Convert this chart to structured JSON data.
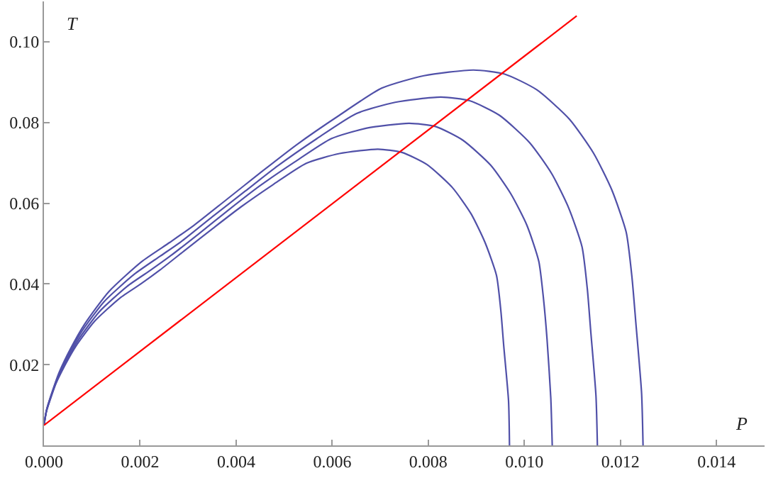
{
  "chart_data": {
    "type": "line",
    "xlabel": "P",
    "ylabel": "T",
    "xlim": [
      0,
      0.015
    ],
    "ylim": [
      0,
      0.11
    ],
    "xticks": [
      {
        "value": 0,
        "label": "0.000"
      },
      {
        "value": 0.002,
        "label": "0.002"
      },
      {
        "value": 0.004,
        "label": "0.004"
      },
      {
        "value": 0.006,
        "label": "0.006"
      },
      {
        "value": 0.008,
        "label": "0.008"
      },
      {
        "value": 0.01,
        "label": "0.010"
      },
      {
        "value": 0.012,
        "label": "0.012"
      },
      {
        "value": 0.014,
        "label": "0.014"
      }
    ],
    "yticks": [
      0.02,
      0.04,
      0.06,
      {
        "value": 0.08,
        "label": "0.08"
      },
      {
        "value": 0.1,
        "label": "0.10"
      }
    ],
    "grid": false,
    "marker": "none",
    "line_style": "solid",
    "series": [
      {
        "color": "#5050a8",
        "x": [
          0,
          4.7e-05,
          0.00014,
          0.000249,
          0.000435,
          0.00066,
          0.00105,
          0.00158,
          0.00204,
          0.00242,
          0.00294,
          0.00352,
          0.00409,
          0.00478,
          0.00546,
          0.00615,
          0.00695,
          0.00745,
          0.00797,
          0.0085,
          0.00889,
          0.00918,
          0.00942,
          0.00951,
          0.00957,
          0.00967,
          0.00969
        ],
        "values": [
          0.005,
          0.0082,
          0.0117,
          0.0153,
          0.0198,
          0.0245,
          0.0307,
          0.0365,
          0.0402,
          0.0435,
          0.0484,
          0.0538,
          0.059,
          0.0647,
          0.0699,
          0.0723,
          0.0734,
          0.0726,
          0.0696,
          0.0639,
          0.0574,
          0.0503,
          0.0421,
          0.0334,
          0.0247,
          0.0111,
          0
        ]
      },
      {
        "color": "#5050a8",
        "x": [
          0,
          5.1e-05,
          0.000153,
          0.000272,
          0.000476,
          0.000723,
          0.00115,
          0.00173,
          0.00223,
          0.00265,
          0.00322,
          0.00385,
          0.00447,
          0.00523,
          0.00598,
          0.00672,
          0.0076,
          0.00815,
          0.00872,
          0.0093,
          0.00972,
          0.01005,
          0.0103,
          0.0104,
          0.01047,
          0.01055,
          0.01058
        ],
        "values": [
          0.005,
          0.0085,
          0.0123,
          0.0162,
          0.0212,
          0.0263,
          0.0331,
          0.0394,
          0.0435,
          0.0471,
          0.0524,
          0.0584,
          0.0641,
          0.0703,
          0.076,
          0.0786,
          0.0798,
          0.079,
          0.0756,
          0.0694,
          0.0623,
          0.0546,
          0.0456,
          0.0361,
          0.0266,
          0.0117,
          0
        ]
      },
      {
        "color": "#5050a8",
        "x": [
          0,
          5.5e-05,
          0.000166,
          0.000296,
          0.000517,
          0.000785,
          0.00125,
          0.00188,
          0.00242,
          0.00288,
          0.0035,
          0.00419,
          0.00486,
          0.00568,
          0.0065,
          0.00731,
          0.00826,
          0.00886,
          0.00948,
          0.01011,
          0.01057,
          0.01092,
          0.0112,
          0.01131,
          0.01138,
          0.01149,
          0.01152
        ],
        "values": [
          0.005,
          0.0088,
          0.0129,
          0.0172,
          0.0226,
          0.0282,
          0.0356,
          0.0424,
          0.0469,
          0.0507,
          0.0566,
          0.063,
          0.0692,
          0.076,
          0.0822,
          0.085,
          0.0863,
          0.0854,
          0.0818,
          0.075,
          0.0673,
          0.0589,
          0.0492,
          0.0388,
          0.0285,
          0.0123,
          0
        ]
      },
      {
        "color": "#5050a8",
        "x": [
          0,
          6e-05,
          0.00018,
          0.00032,
          0.00056,
          0.00085,
          0.00135,
          0.00203,
          0.00262,
          0.00312,
          0.00379,
          0.00453,
          0.00526,
          0.00615,
          0.00703,
          0.00791,
          0.00894,
          0.00959,
          0.01026,
          0.01094,
          0.01144,
          0.01182,
          0.01212,
          0.01224,
          0.01232,
          0.01244,
          0.01247
        ],
        "values": [
          0.005,
          0.0091,
          0.0136,
          0.0182,
          0.0241,
          0.0301,
          0.0381,
          0.0455,
          0.0503,
          0.0545,
          0.0608,
          0.0678,
          0.0745,
          0.0818,
          0.0885,
          0.0916,
          0.093,
          0.092,
          0.0881,
          0.0808,
          0.0724,
          0.0633,
          0.0528,
          0.0416,
          0.0304,
          0.0129,
          0
        ]
      },
      {
        "color": "#ff0000",
        "x": [
          0,
          0.01109
        ],
        "values": [
          0.005,
          0.1064
        ]
      }
    ]
  }
}
